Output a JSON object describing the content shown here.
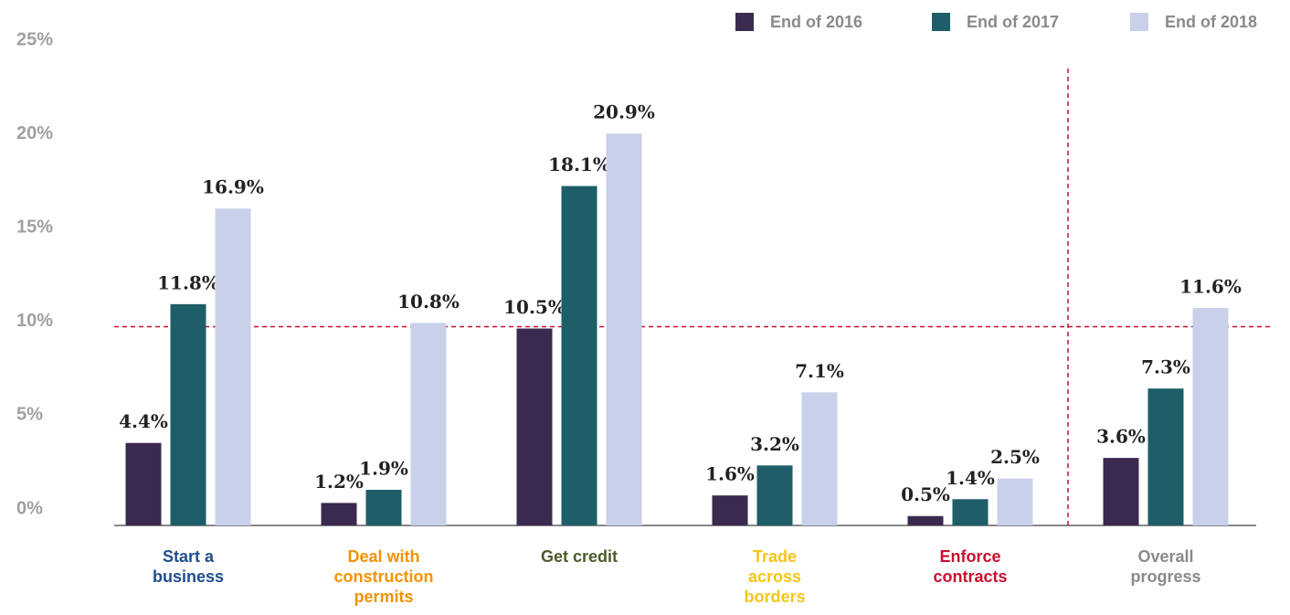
{
  "chart_data": {
    "type": "bar",
    "categories": [
      "Start a business",
      "Deal with construction permits",
      "Get credit",
      "Trade across borders",
      "Enforce contracts",
      "Overall progress"
    ],
    "category_colors": [
      "#1f4e8c",
      "#f39200",
      "#4a5a2a",
      "#f5c518",
      "#c8102e",
      "#8a8a8a"
    ],
    "series": [
      {
        "name": "End of 2016",
        "color": "#3b2a4f",
        "values": [
          4.4,
          1.2,
          10.5,
          1.6,
          0.5,
          3.6
        ],
        "value_labels": [
          "4.4%",
          "1.2%",
          "10.5%",
          "1.6%",
          "0.5%",
          "3.6%"
        ]
      },
      {
        "name": "End of 2017",
        "color": "#1d5e68",
        "values": [
          11.8,
          1.9,
          18.1,
          3.2,
          1.4,
          7.3
        ],
        "value_labels": [
          "11.8%",
          "1.9%",
          "18.1%",
          "3.2%",
          "1.4%",
          "7.3%"
        ]
      },
      {
        "name": "End of 2018",
        "color": "#c9d0ea",
        "values": [
          16.9,
          10.8,
          20.9,
          7.1,
          2.5,
          11.6
        ],
        "value_labels": [
          "16.9%",
          "10.8%",
          "20.9%",
          "7.1%",
          "2.5%",
          "11.6%"
        ]
      }
    ],
    "ylim": [
      0,
      25
    ],
    "yticks": [
      {
        "value": 0,
        "label": "0%"
      },
      {
        "value": 5,
        "label": "5%"
      },
      {
        "value": 10,
        "label": "10%"
      },
      {
        "value": 15,
        "label": "15%"
      },
      {
        "value": 20,
        "label": "20%"
      },
      {
        "value": 25,
        "label": "25%"
      }
    ],
    "reference_line": 10.6,
    "reference_color": "#c8102e",
    "legend": "top-right"
  }
}
